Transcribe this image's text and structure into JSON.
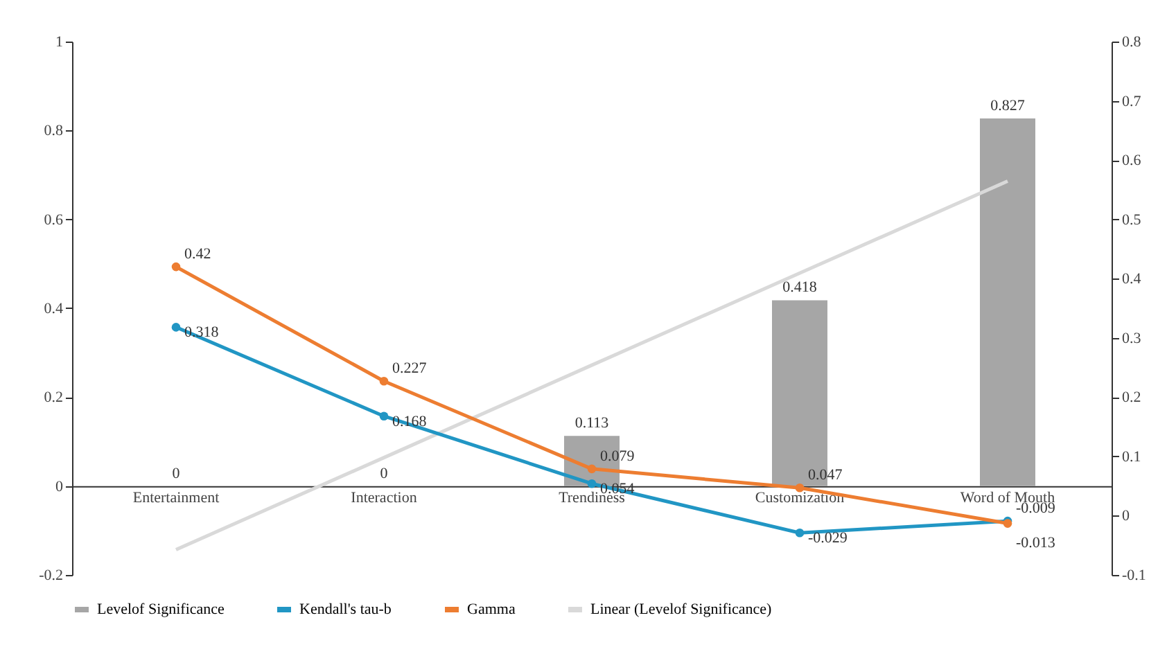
{
  "chart_data": {
    "type": "bar",
    "categories": [
      "Entertainment",
      "Interaction",
      "Trendiness",
      "Customization",
      "Word of Mouth"
    ],
    "series": [
      {
        "name": "Levelof Significance",
        "color": "#a6a6a6",
        "values": [
          0,
          0,
          0.113,
          0.418,
          0.827
        ]
      },
      {
        "name": "Kendall's tau-b",
        "type": "line",
        "axis": "y2",
        "color": "#2196c4",
        "values": [
          0.318,
          0.168,
          0.054,
          -0.029,
          -0.009
        ]
      },
      {
        "name": "Gamma",
        "type": "line",
        "axis": "y2",
        "color": "#ed7d31",
        "values": [
          0.42,
          0.227,
          0.079,
          0.047,
          -0.013
        ]
      },
      {
        "name": "Linear (Levelof Significance)",
        "type": "line",
        "color": "#d9d9d9",
        "marker": "none",
        "values": [
          -0.143,
          0.064,
          0.272,
          0.479,
          0.686
        ],
        "data_labels": false
      }
    ],
    "ylim": [
      -0.2,
      1
    ],
    "yticks": [
      -0.2,
      0,
      0.2,
      0.4,
      0.6,
      0.8,
      1
    ],
    "y2lim": [
      -0.1,
      0.8
    ],
    "y2ticks": [
      -0.1,
      0,
      0.1,
      0.2,
      0.3,
      0.4,
      0.5,
      0.6,
      0.7,
      0.8
    ],
    "data_labels": true,
    "marker": "circle",
    "line_style": "solid",
    "grid": false,
    "legend": "bottom"
  }
}
